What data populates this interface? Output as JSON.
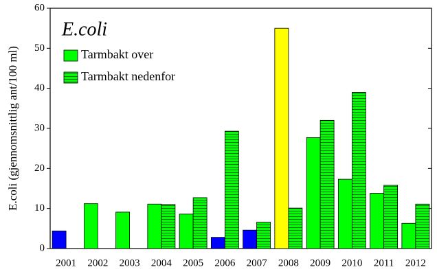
{
  "chart_data": {
    "type": "bar",
    "title": "E.coli",
    "y_label": "E.coli (gjennomsnittlig ant/100 ml)",
    "categories": [
      "2001",
      "2002",
      "2003",
      "2004",
      "2005",
      "2006",
      "2007",
      "2008",
      "2009",
      "2010",
      "2011",
      "2012"
    ],
    "series": [
      {
        "name": "Tarmbakt over",
        "color": "#00ff00",
        "pattern": "solid",
        "colors": [
          "#0000ff",
          "#00ff00",
          "#00ff00",
          "#00ff00",
          "#00ff00",
          "#0000ff",
          "#0000ff",
          "#ffff00",
          "#00ff00",
          "#00ff00",
          "#00ff00",
          "#00ff00"
        ],
        "values": [
          4.4,
          11.2,
          9.1,
          11.1,
          8.6,
          2.8,
          4.6,
          55,
          27.7,
          17.3,
          13.8,
          6.3
        ]
      },
      {
        "name": "Tarmbakt nedenfor",
        "color": "#00ff00",
        "pattern": "horizontal-stripes",
        "values": [
          null,
          null,
          null,
          11.0,
          12.7,
          29.3,
          6.6,
          10.1,
          32,
          39,
          15.8,
          11.1
        ]
      }
    ],
    "ylim": [
      0,
      60
    ],
    "yticks": [
      0,
      10,
      20,
      30,
      40,
      50,
      60
    ],
    "grid": false,
    "legend": "top-left"
  }
}
